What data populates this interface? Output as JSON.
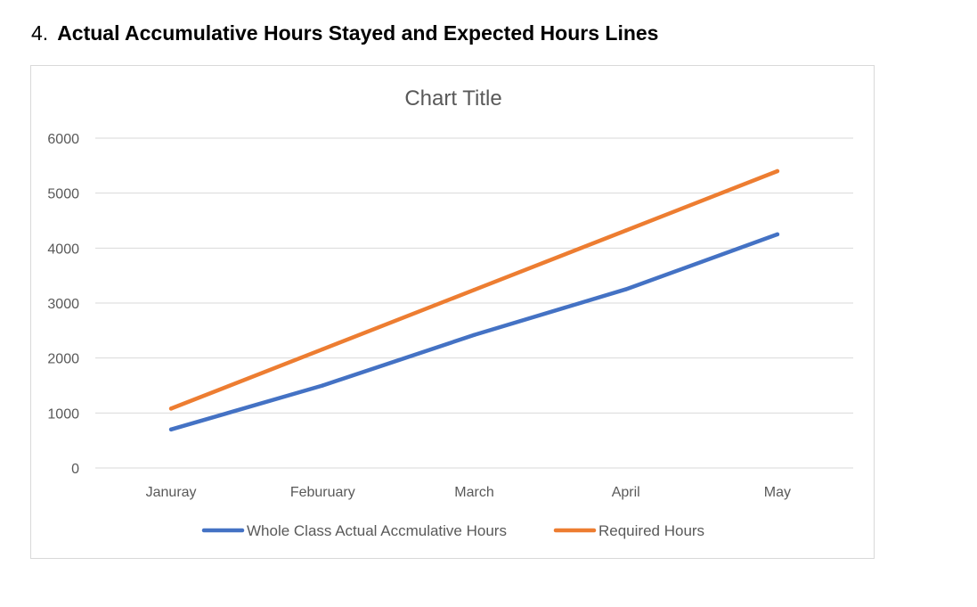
{
  "heading": {
    "number": "4.",
    "text": "Actual Accumulative Hours Stayed and Expected Hours Lines"
  },
  "chart_data": {
    "type": "line",
    "title": "Chart Title",
    "categories": [
      "Januray",
      "Feburuary",
      "March",
      "April",
      "May"
    ],
    "series": [
      {
        "name": "Whole Class Actual Accmulative Hours",
        "color": "#4472C4",
        "values": [
          700,
          1500,
          2420,
          3250,
          4250
        ]
      },
      {
        "name": "Required Hours",
        "color": "#ED7D31",
        "values": [
          1080,
          2160,
          3240,
          4320,
          5400
        ]
      }
    ],
    "y_ticks": [
      0,
      1000,
      2000,
      3000,
      4000,
      5000,
      6000
    ],
    "ylim": [
      0,
      6000
    ],
    "xlabel": "",
    "ylabel": "",
    "grid": true,
    "legend_position": "bottom"
  }
}
